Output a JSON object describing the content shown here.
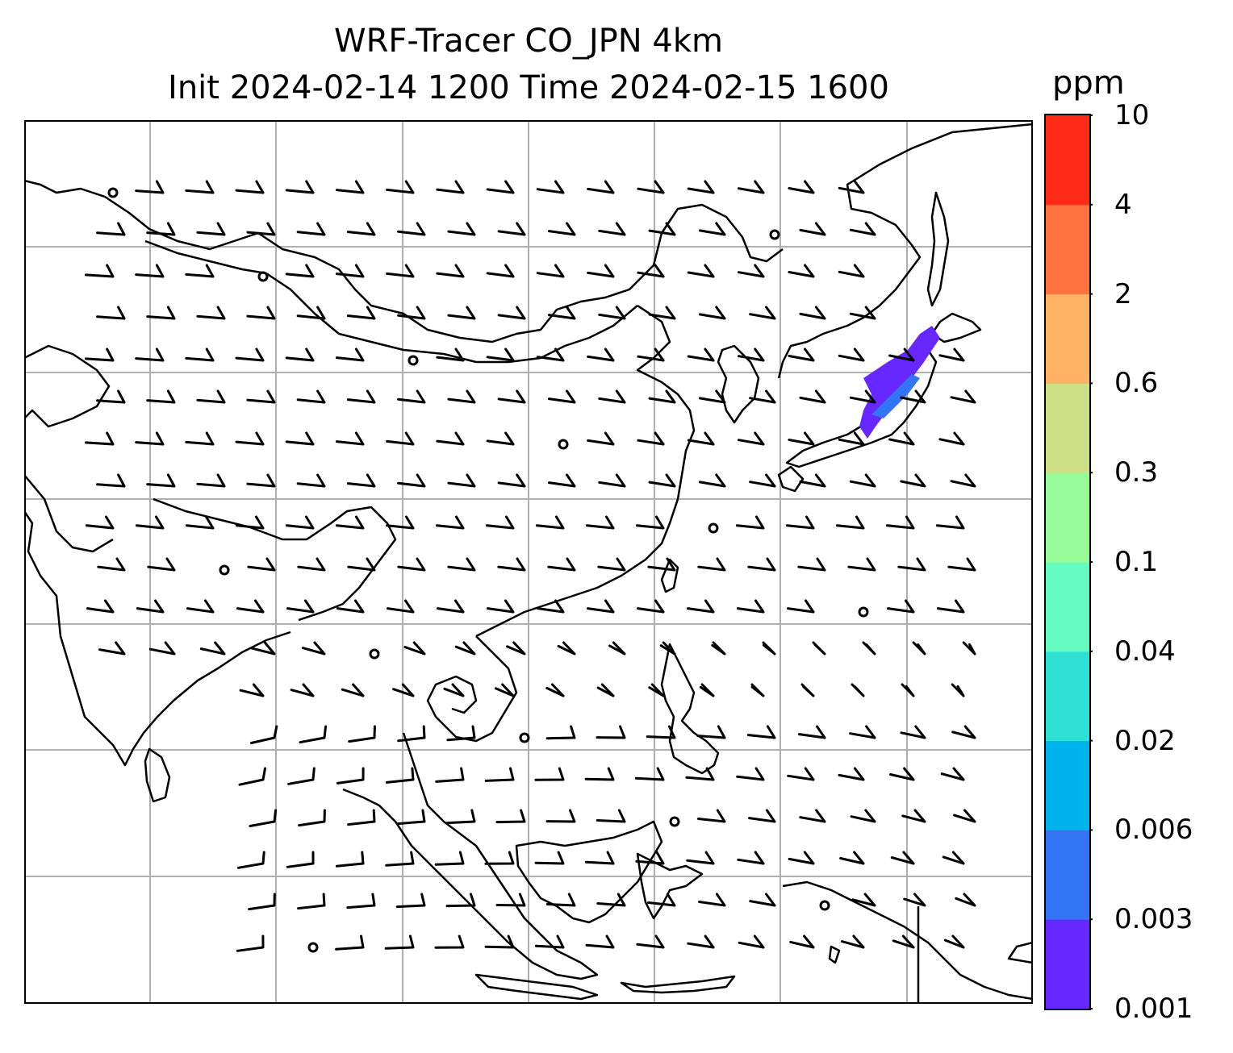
{
  "title_line1": "WRF-Tracer CO_JPN 4km",
  "title_line2": "Init 2024-02-14 1200 Time 2024-02-15 1600",
  "colorbar": {
    "unit": "ppm",
    "ticks": [
      "10",
      "4",
      "2",
      "0.6",
      "0.3",
      "0.1",
      "0.04",
      "0.02",
      "0.006",
      "0.003",
      "0.001"
    ],
    "levels": [
      0.001,
      0.003,
      0.006,
      0.02,
      0.04,
      0.1,
      0.3,
      0.6,
      2,
      4,
      10
    ],
    "colors": [
      "#6628ff",
      "#3374f4",
      "#00b3ed",
      "#2fe0d4",
      "#66fbbf",
      "#98fb99",
      "#cde085",
      "#ffb263",
      "#ff733f",
      "#ff2a15"
    ]
  },
  "plume_color": "#6628ff",
  "coastline_color": "#000000",
  "gridline_color": "#b0b0b0"
}
